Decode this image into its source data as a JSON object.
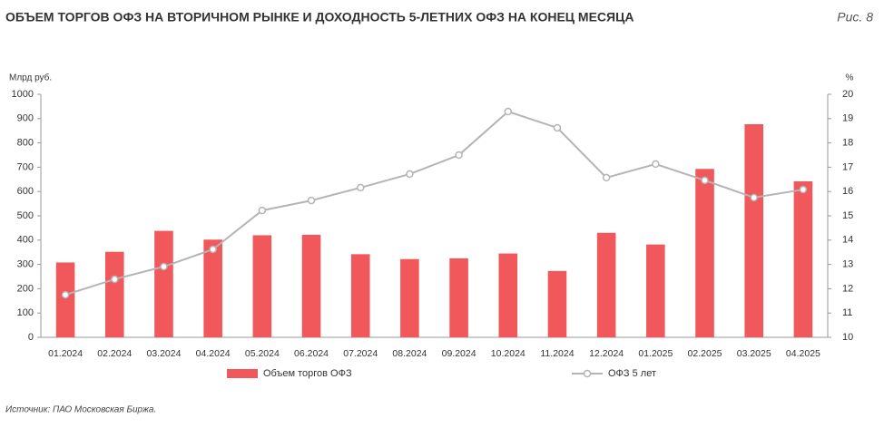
{
  "chart_data": {
    "type": "bar-line",
    "title": "ОБЪЕМ ТОРГОВ ОФЗ НА ВТОРИЧНОМ РЫНКЕ И ДОХОДНОСТЬ 5-ЛЕТНИХ ОФЗ НА КОНЕЦ МЕСЯЦА",
    "figure_label": "Рис. 8",
    "y_label": "Млрд руб.",
    "y2_label": "%",
    "source": "Источник: ПАО Московская Биржа.",
    "categories": [
      "01.2024",
      "02.2024",
      "03.2024",
      "04.2024",
      "05.2024",
      "06.2024",
      "07.2024",
      "08.2024",
      "09.2024",
      "10.2024",
      "11.2024",
      "12.2024",
      "01.2025",
      "02.2025",
      "03.2025",
      "04.2025"
    ],
    "series": [
      {
        "name": "Объем торгов ОФЗ",
        "type": "bar",
        "color": "#f0585c",
        "values": [
          308,
          352,
          438,
          402,
          420,
          422,
          342,
          322,
          325,
          345,
          273,
          430,
          382,
          693,
          877,
          642
        ]
      },
      {
        "name": "ОФЗ 5 лет",
        "type": "line",
        "axis": "y2",
        "color": "#b4b4b4",
        "values": [
          11.75,
          12.39,
          12.91,
          13.62,
          15.22,
          15.63,
          16.16,
          16.72,
          17.5,
          19.29,
          18.62,
          16.57,
          17.13,
          16.46,
          15.75,
          16.08
        ]
      }
    ],
    "ylim": [
      0,
      1000
    ],
    "yticks": [
      0,
      100,
      200,
      300,
      400,
      500,
      600,
      700,
      800,
      900,
      1000
    ],
    "y2lim": [
      10,
      20
    ],
    "y2ticks": [
      10,
      11,
      12,
      13,
      14,
      15,
      16,
      17,
      18,
      19,
      20
    ],
    "grid": false
  }
}
